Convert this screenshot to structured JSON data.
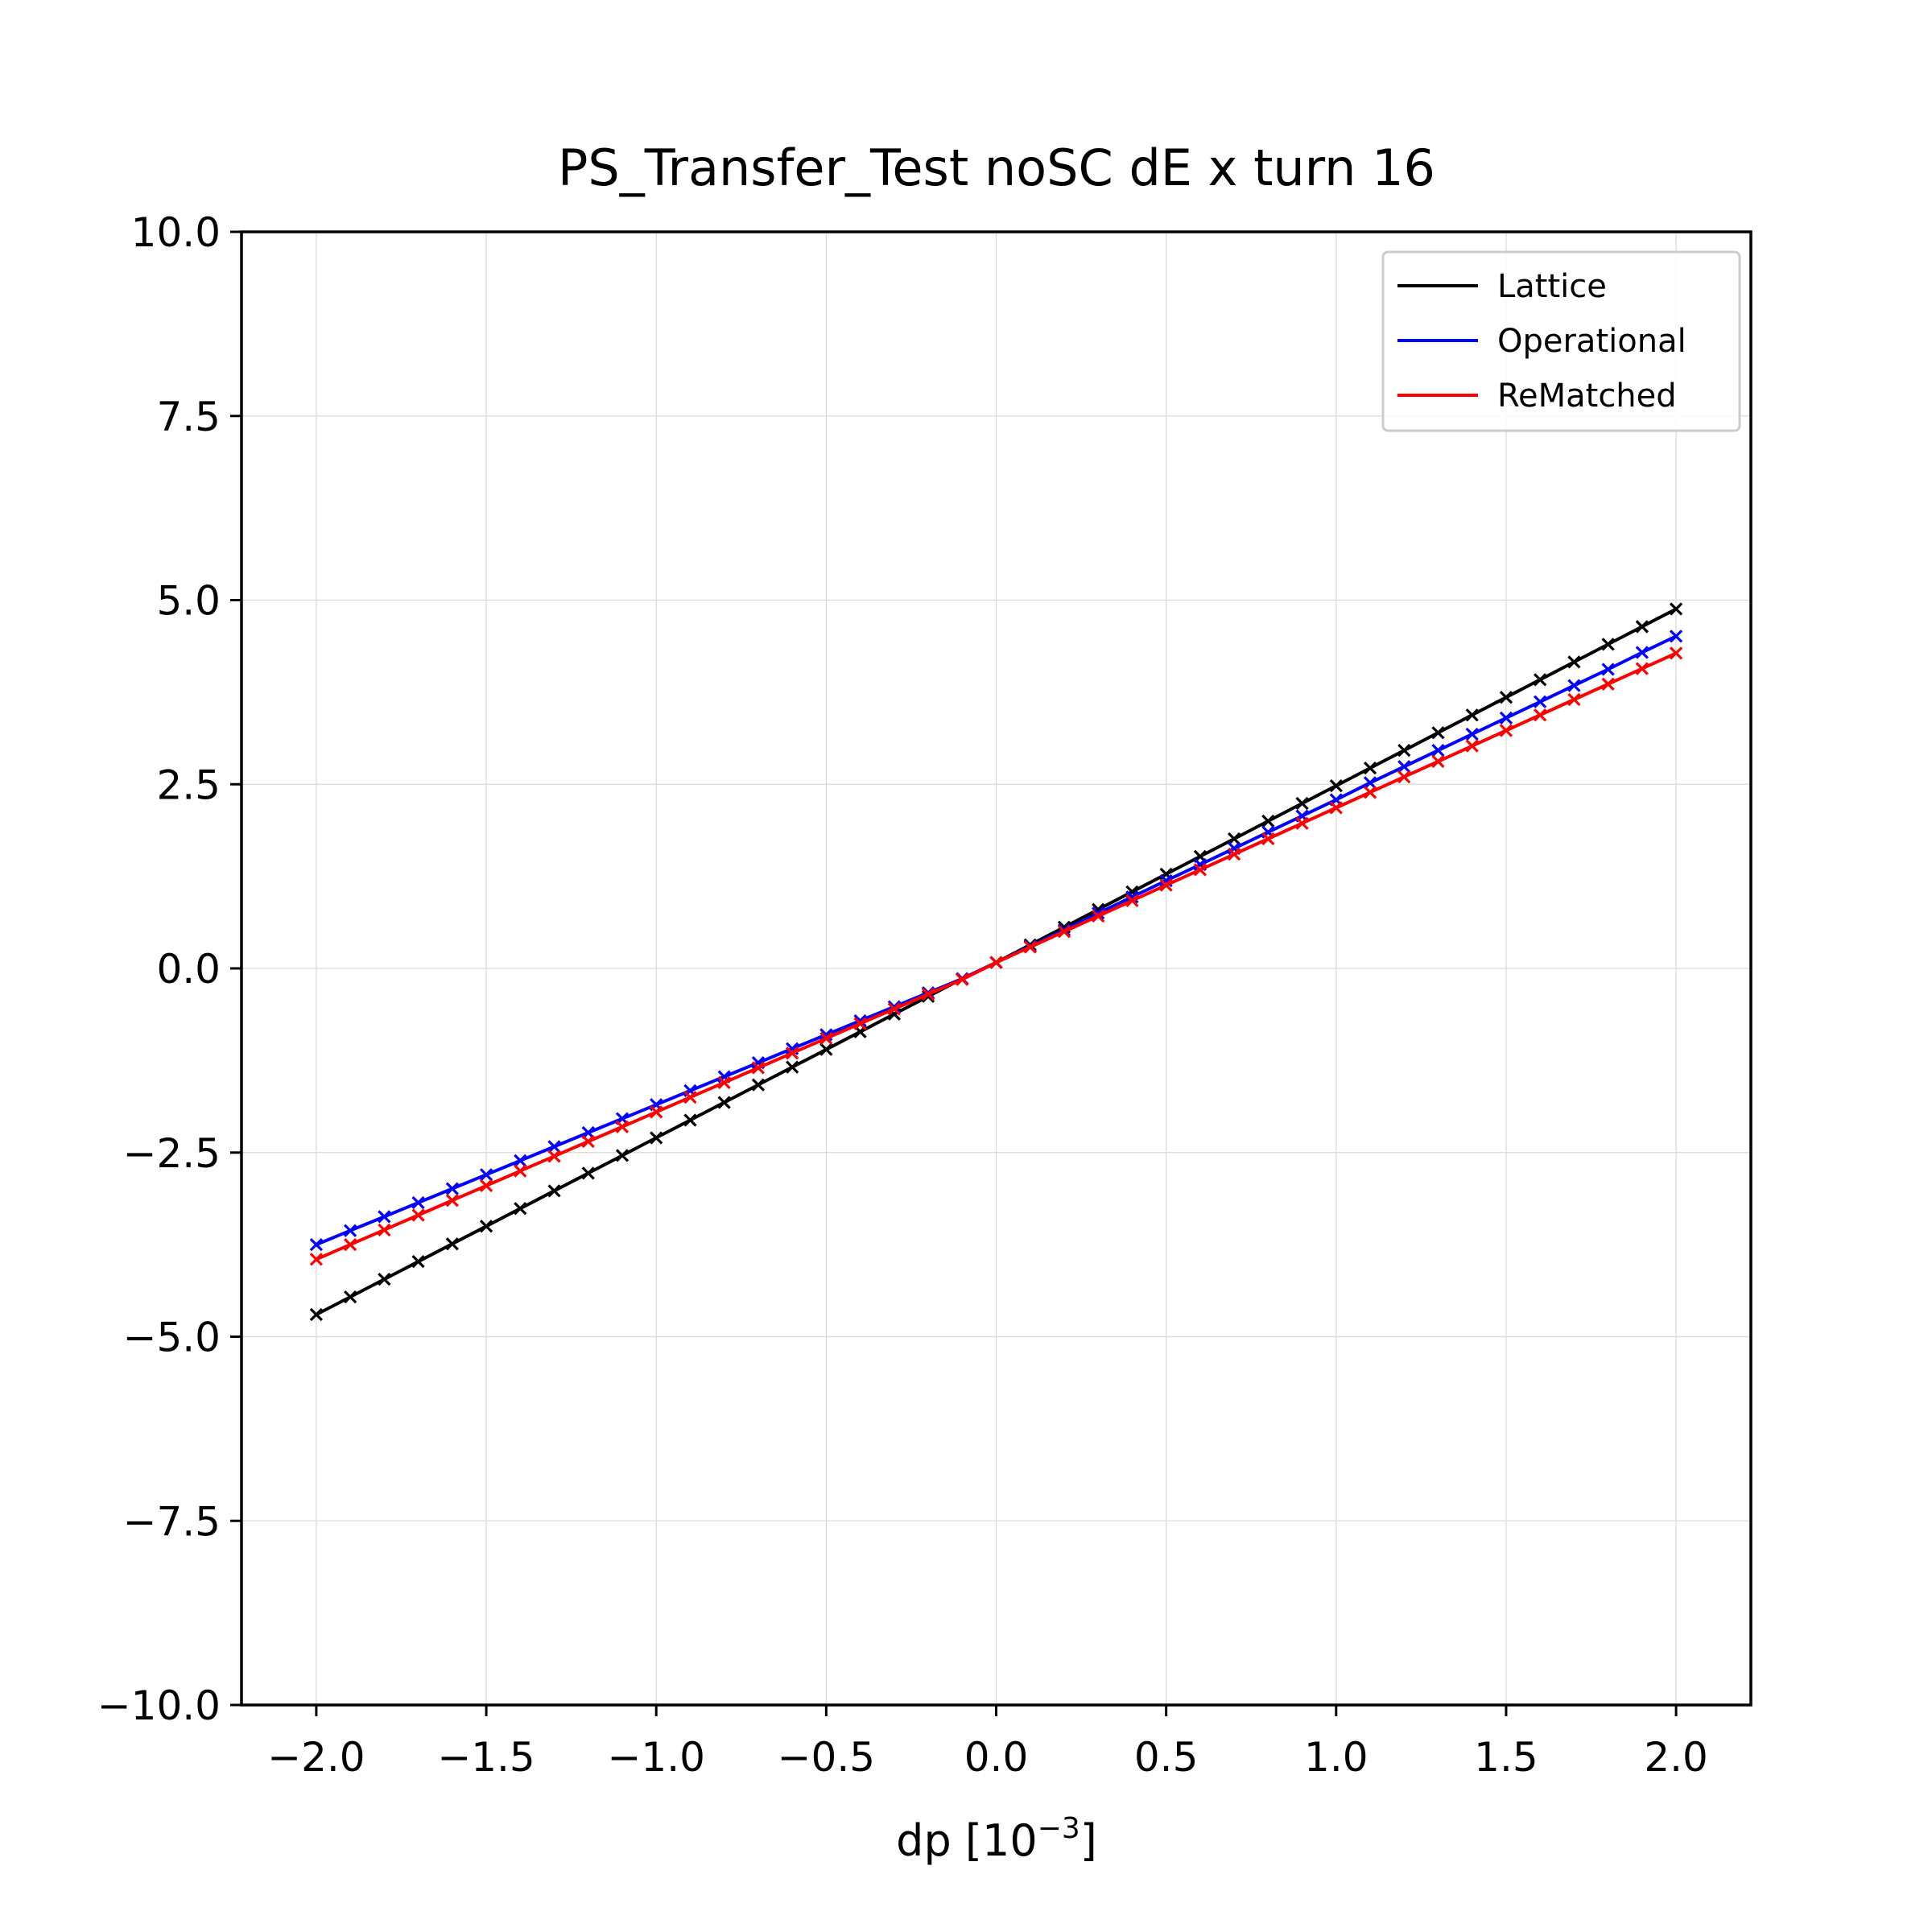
{
  "chart_data": {
    "type": "line",
    "title": "PS_Transfer_Test noSC dE x turn 16",
    "xlabel_base": "dp [10",
    "xlabel_exponent": "−3",
    "xlabel_close": "]",
    "ylabel": "",
    "xlim": [
      -2.22,
      2.22
    ],
    "ylim": [
      -10,
      10
    ],
    "xticks": [
      -2.0,
      -1.5,
      -1.0,
      -0.5,
      0.0,
      0.5,
      1.0,
      1.5,
      2.0
    ],
    "xtick_labels": [
      "−2.0",
      "−1.5",
      "−1.0",
      "−0.5",
      "0.0",
      "0.5",
      "1.0",
      "1.5",
      "2.0"
    ],
    "yticks": [
      -10.0,
      -7.5,
      -5.0,
      -2.5,
      0.0,
      2.5,
      5.0,
      7.5,
      10.0
    ],
    "ytick_labels": [
      "−10.0",
      "−7.5",
      "−5.0",
      "−2.5",
      "0.0",
      "2.5",
      "5.0",
      "7.5",
      "10.0"
    ],
    "grid": true,
    "legend_position": "top-right",
    "marker": "x",
    "x_start": -2.0,
    "x_step": 0.1,
    "series": [
      {
        "name": "Lattice",
        "color": "#000000",
        "values": [
          -4.7,
          -4.46,
          -4.22,
          -3.98,
          -3.74,
          -3.5,
          -3.26,
          -3.02,
          -2.78,
          -2.54,
          -2.3,
          -2.06,
          -1.82,
          -1.58,
          -1.34,
          -1.1,
          -0.86,
          -0.62,
          -0.38,
          -0.14,
          0.08,
          0.32,
          0.56,
          0.8,
          1.04,
          1.28,
          1.52,
          1.76,
          2.0,
          2.24,
          2.48,
          2.72,
          2.96,
          3.2,
          3.44,
          3.68,
          3.92,
          4.16,
          4.4,
          4.64,
          4.88
        ]
      },
      {
        "name": "Operational",
        "color": "#0000ff",
        "values": [
          -3.75,
          -3.56,
          -3.37,
          -3.18,
          -2.99,
          -2.8,
          -2.61,
          -2.42,
          -2.23,
          -2.04,
          -1.85,
          -1.66,
          -1.47,
          -1.28,
          -1.09,
          -0.9,
          -0.71,
          -0.52,
          -0.33,
          -0.14,
          0.08,
          0.3,
          0.52,
          0.75,
          0.97,
          1.19,
          1.41,
          1.63,
          1.85,
          2.07,
          2.29,
          2.52,
          2.74,
          2.96,
          3.18,
          3.4,
          3.62,
          3.84,
          4.06,
          4.29,
          4.51
        ]
      },
      {
        "name": "ReMatched",
        "color": "#ff0000",
        "values": [
          -3.95,
          -3.75,
          -3.55,
          -3.35,
          -3.15,
          -2.95,
          -2.75,
          -2.55,
          -2.35,
          -2.15,
          -1.95,
          -1.75,
          -1.55,
          -1.35,
          -1.15,
          -0.95,
          -0.75,
          -0.55,
          -0.35,
          -0.15,
          0.08,
          0.29,
          0.5,
          0.71,
          0.92,
          1.13,
          1.34,
          1.55,
          1.76,
          1.97,
          2.18,
          2.39,
          2.6,
          2.81,
          3.02,
          3.23,
          3.44,
          3.65,
          3.86,
          4.07,
          4.28
        ]
      }
    ]
  }
}
